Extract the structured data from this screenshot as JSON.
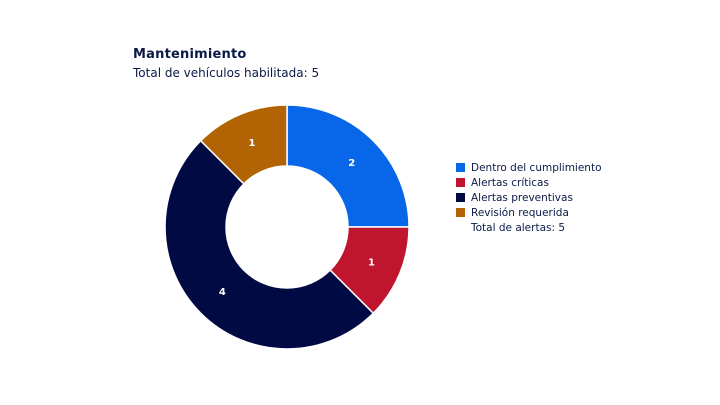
{
  "header": {
    "title": "Mantenimiento",
    "subtitle": "Total de vehículos habilitada: 5"
  },
  "chart_data": {
    "type": "pie",
    "variant": "donut",
    "categories": [
      "Dentro del cumplimiento",
      "Alertas críticas",
      "Alertas preventivas",
      "Revisión requerida"
    ],
    "values": [
      2,
      1,
      4,
      1
    ],
    "colors": [
      "#0866e8",
      "#c0152f",
      "#010a43",
      "#b26404"
    ],
    "data_labels": [
      "2",
      "1",
      "4",
      "1"
    ],
    "legend_placement": "right",
    "legend_note": "Total de alertas: 5"
  }
}
